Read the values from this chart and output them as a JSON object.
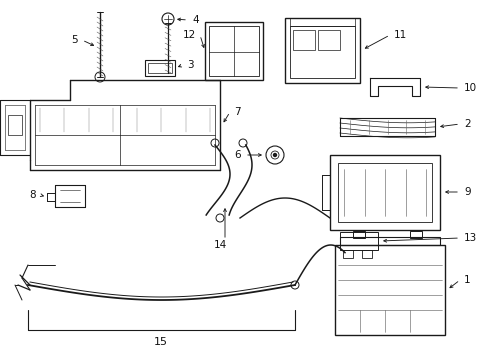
{
  "bg_color": "#ffffff",
  "line_color": "#1a1a1a",
  "label_color": "#111111",
  "figsize": [
    4.9,
    3.6
  ],
  "dpi": 100,
  "lw_main": 0.9,
  "lw_thin": 0.5,
  "label_fontsize": 7.5
}
